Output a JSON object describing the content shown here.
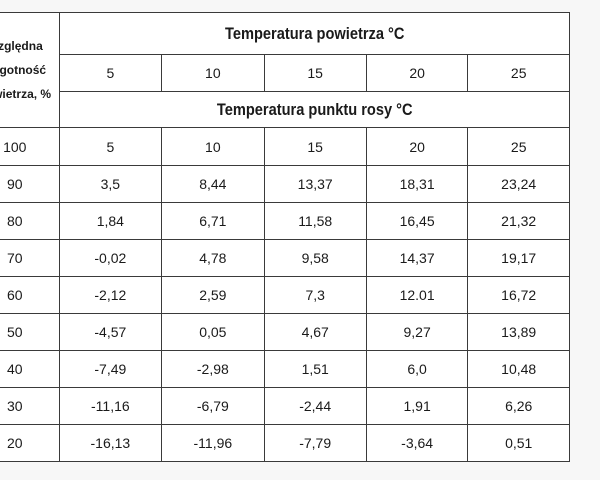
{
  "header": {
    "first_col_lines": [
      "Względna",
      "wilgotność",
      "powietrza, %"
    ],
    "air_temp_title": "Temperatura powietrza  °C",
    "dew_point_title": "Temperatura punktu rosy °C"
  },
  "air_temps": [
    "5",
    "10",
    "15",
    "20",
    "25"
  ],
  "first_row": {
    "humidity": "100",
    "values": [
      "5",
      "10",
      "15",
      "20",
      "25"
    ]
  },
  "rows": [
    {
      "humidity": "90",
      "values": [
        "3,5",
        "8,44",
        "13,37",
        "18,31",
        "23,24"
      ]
    },
    {
      "humidity": "80",
      "values": [
        "1,84",
        "6,71",
        "11,58",
        "16,45",
        "21,32"
      ]
    },
    {
      "humidity": "70",
      "values": [
        "-0,02",
        "4,78",
        "9,58",
        "14,37",
        "19,17"
      ]
    },
    {
      "humidity": "60",
      "values": [
        "-2,12",
        "2,59",
        "7,3",
        "12.01",
        "16,72"
      ]
    },
    {
      "humidity": "50",
      "values": [
        "-4,57",
        "0,05",
        "4,67",
        "9,27",
        "13,89"
      ]
    },
    {
      "humidity": "40",
      "values": [
        "-7,49",
        "-2,98",
        "1,51",
        "6,0",
        "10,48"
      ]
    },
    {
      "humidity": "30",
      "values": [
        "-11,16",
        "-6,79",
        "-2,44",
        "1,91",
        "6,26"
      ]
    },
    {
      "humidity": "20",
      "values": [
        "-16,13",
        "-11,96",
        "-7,79",
        "-3,64",
        "0,51"
      ]
    }
  ]
}
